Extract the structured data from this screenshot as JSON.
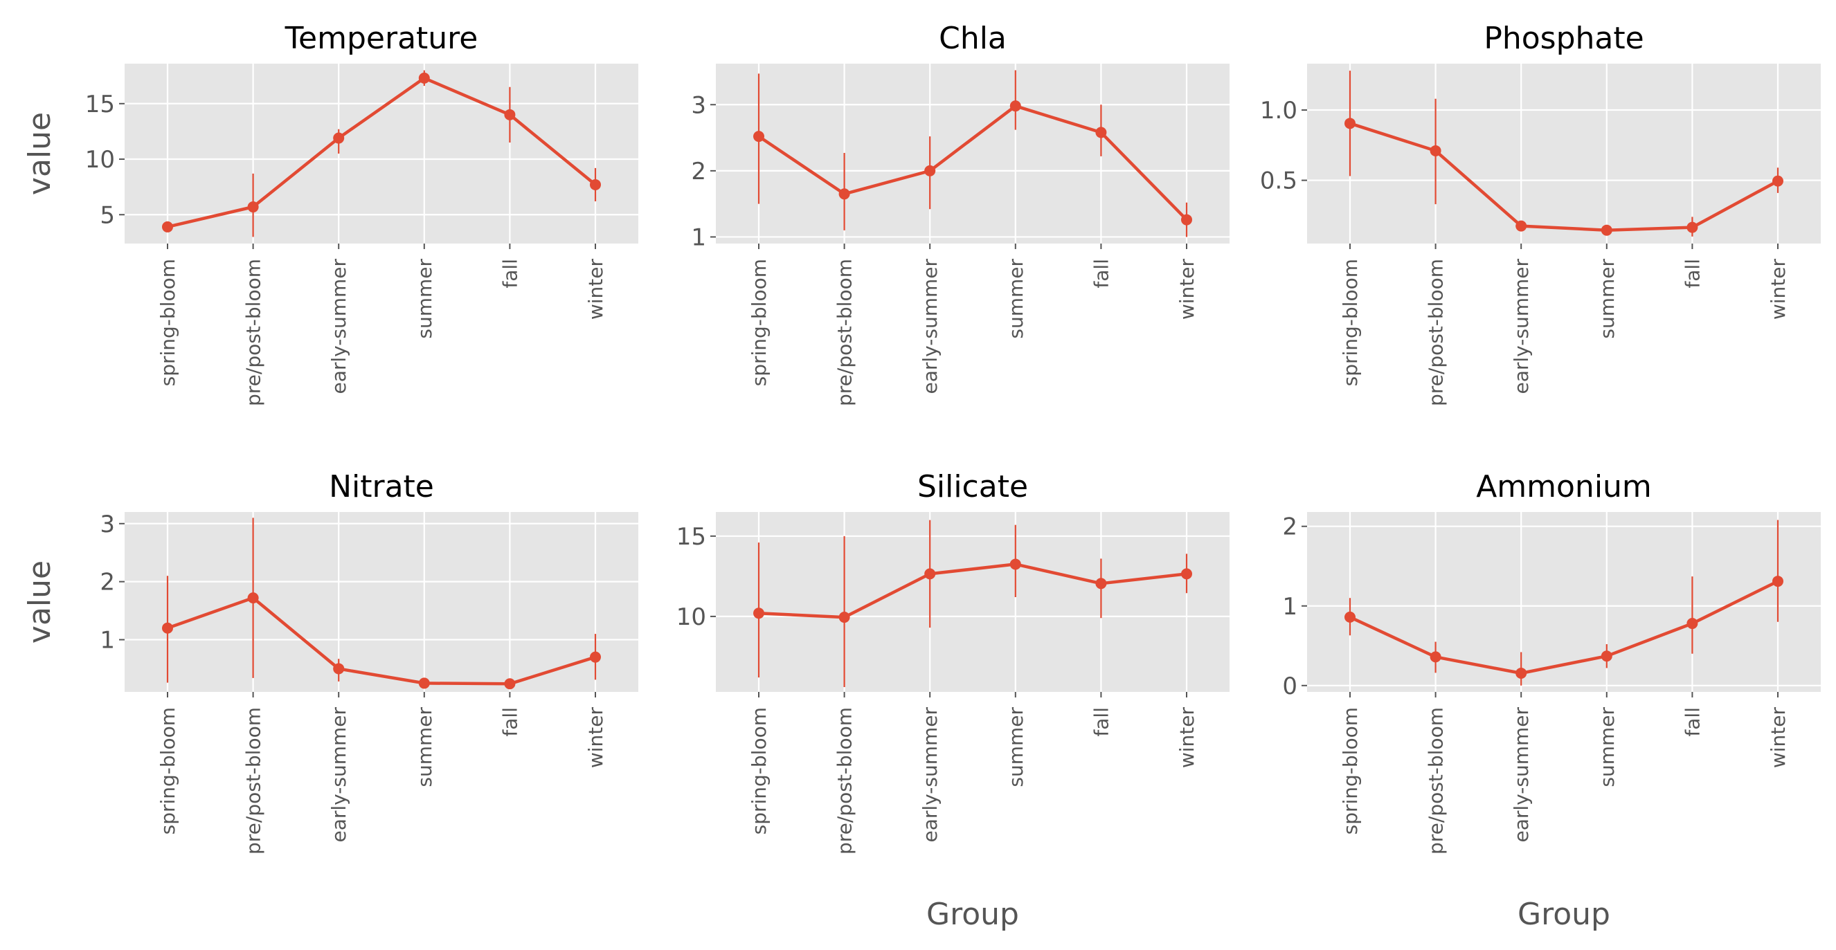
{
  "colors": {
    "series": "#e24a33",
    "panel_bg": "#e5e5e5",
    "grid": "#ffffff",
    "tick_text": "#555555"
  },
  "chart_data": [
    {
      "type": "line",
      "title": "Temperature",
      "ylabel": "value",
      "xlabel": "",
      "categories": [
        "spring-bloom",
        "pre/post-bloom",
        "early-summer",
        "summer",
        "fall",
        "winter"
      ],
      "values": [
        3.9,
        5.7,
        11.9,
        17.3,
        14.0,
        7.7
      ],
      "error_low": [
        3.6,
        3.0,
        10.5,
        16.6,
        11.5,
        6.2
      ],
      "error_high": [
        4.2,
        8.7,
        12.7,
        18.0,
        16.5,
        9.2
      ],
      "ylim": [
        2.4,
        18.6
      ],
      "yticks": [
        5,
        10,
        15
      ],
      "ytick_labels": [
        "5",
        "10",
        "15"
      ],
      "grid": true
    },
    {
      "type": "line",
      "title": "Chla",
      "ylabel": "",
      "xlabel": "",
      "categories": [
        "spring-bloom",
        "pre/post-bloom",
        "early-summer",
        "summer",
        "fall",
        "winter"
      ],
      "values": [
        2.52,
        1.65,
        2.0,
        2.98,
        2.58,
        1.26
      ],
      "error_low": [
        1.5,
        1.1,
        1.42,
        2.62,
        2.22,
        1.0
      ],
      "error_high": [
        3.47,
        2.27,
        2.52,
        3.52,
        3.0,
        1.52
      ],
      "ylim": [
        0.9,
        3.62
      ],
      "yticks": [
        1,
        2,
        3
      ],
      "ytick_labels": [
        "1",
        "2",
        "3"
      ],
      "grid": true
    },
    {
      "type": "line",
      "title": "Phosphate",
      "ylabel": "",
      "xlabel": "",
      "categories": [
        "spring-bloom",
        "pre/post-bloom",
        "early-summer",
        "summer",
        "fall",
        "winter"
      ],
      "values": [
        0.905,
        0.71,
        0.175,
        0.145,
        0.165,
        0.495
      ],
      "error_low": [
        0.53,
        0.33,
        0.155,
        0.13,
        0.1,
        0.41
      ],
      "error_high": [
        1.28,
        1.08,
        0.195,
        0.16,
        0.24,
        0.59
      ],
      "ylim": [
        0.05,
        1.33
      ],
      "yticks": [
        0.5,
        1.0
      ],
      "ytick_labels": [
        "0.5",
        "1.0"
      ],
      "grid": true
    },
    {
      "type": "line",
      "title": "Nitrate",
      "ylabel": "value",
      "xlabel": "",
      "categories": [
        "spring-bloom",
        "pre/post-bloom",
        "early-summer",
        "summer",
        "fall",
        "winter"
      ],
      "values": [
        1.2,
        1.72,
        0.5,
        0.25,
        0.24,
        0.7
      ],
      "error_low": [
        0.26,
        0.34,
        0.28,
        0.22,
        0.2,
        0.31
      ],
      "error_high": [
        2.1,
        3.1,
        0.67,
        0.28,
        0.28,
        1.1
      ],
      "ylim": [
        0.1,
        3.2
      ],
      "yticks": [
        1,
        2,
        3
      ],
      "ytick_labels": [
        "1",
        "2",
        "3"
      ],
      "grid": true
    },
    {
      "type": "line",
      "title": "Silicate",
      "ylabel": "",
      "xlabel": "Group",
      "categories": [
        "spring-bloom",
        "pre/post-bloom",
        "early-summer",
        "summer",
        "fall",
        "winter"
      ],
      "values": [
        10.2,
        9.95,
        12.65,
        13.25,
        12.05,
        12.65
      ],
      "error_low": [
        6.2,
        5.6,
        9.3,
        11.2,
        9.9,
        11.45
      ],
      "error_high": [
        14.6,
        15.0,
        16.0,
        15.7,
        13.6,
        13.9
      ],
      "ylim": [
        5.3,
        16.5
      ],
      "yticks": [
        10,
        15
      ],
      "ytick_labels": [
        "10",
        "15"
      ],
      "grid": true
    },
    {
      "type": "line",
      "title": "Ammonium",
      "ylabel": "",
      "xlabel": "Group",
      "categories": [
        "spring-bloom",
        "pre/post-bloom",
        "early-summer",
        "summer",
        "fall",
        "winter"
      ],
      "values": [
        0.86,
        0.36,
        0.155,
        0.37,
        0.78,
        1.31
      ],
      "error_low": [
        0.63,
        0.16,
        0.0,
        0.22,
        0.4,
        0.8
      ],
      "error_high": [
        1.1,
        0.55,
        0.42,
        0.52,
        1.37,
        2.08
      ],
      "ylim": [
        -0.08,
        2.18
      ],
      "yticks": [
        0,
        1,
        2
      ],
      "ytick_labels": [
        "0",
        "1",
        "2"
      ],
      "grid": true
    }
  ]
}
